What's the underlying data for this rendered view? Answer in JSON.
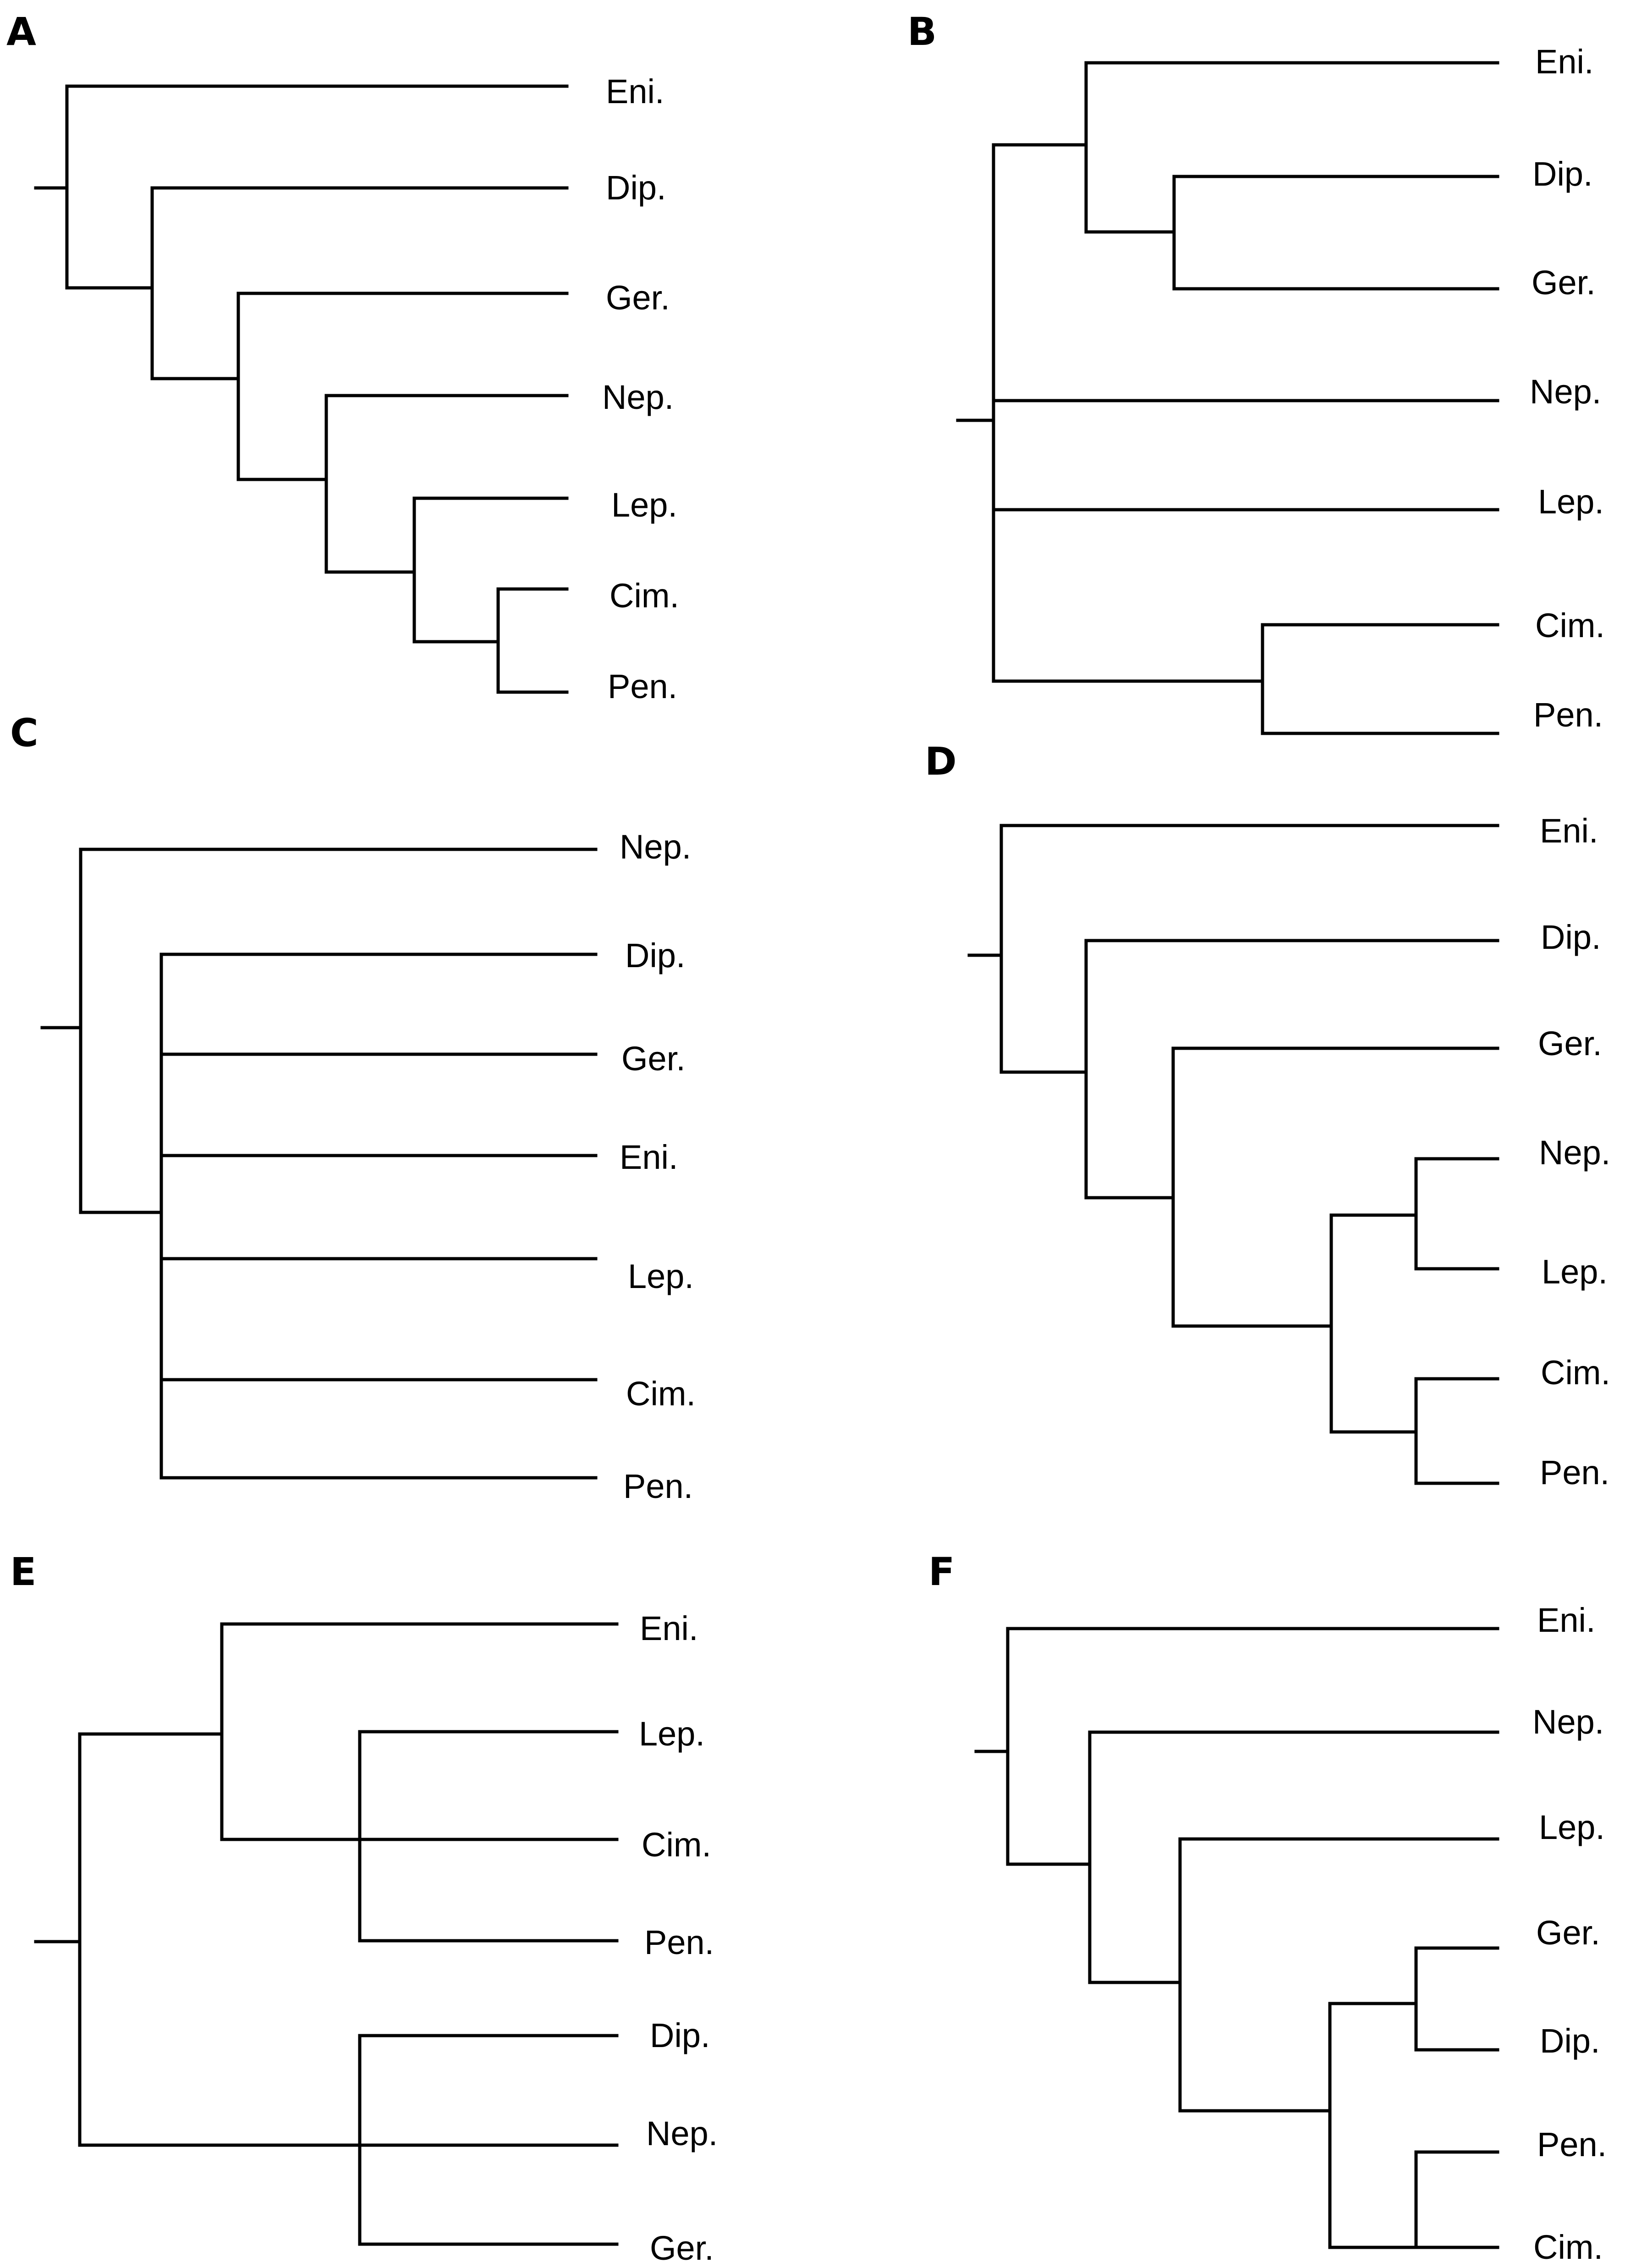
{
  "figure": {
    "panels": [
      {
        "letter": "A",
        "taxa": [
          "Eni.",
          "Dip.",
          "Ger.",
          "Nep.",
          "Lep.",
          "Cim.",
          "Pen."
        ],
        "newick": "(Eni.,(Dip.,(Ger.,(Nep.,(Lep.,(Cim.,Pen.))))))"
      },
      {
        "letter": "B",
        "taxa": [
          "Eni.",
          "Dip.",
          "Ger.",
          "Nep.",
          "Lep.",
          "Cim.",
          "Pen."
        ],
        "newick": "((Eni.,(Dip.,Ger.)),Nep.,Lep.,(Cim.,Pen.))"
      },
      {
        "letter": "C",
        "taxa": [
          "Nep.",
          "Dip.",
          "Ger.",
          "Eni.",
          "Lep.",
          "Cim.",
          "Pen."
        ],
        "newick": "(Nep.,(Dip.,Ger.,Eni.,Lep.,Cim.,Pen.))"
      },
      {
        "letter": "D",
        "taxa": [
          "Eni.",
          "Dip.",
          "Ger.",
          "Nep.",
          "Lep.",
          "Cim.",
          "Pen."
        ],
        "newick": "(Eni.,(Dip.,(Ger.,((Nep.,Lep.),(Cim.,Pen.)))))"
      },
      {
        "letter": "E",
        "taxa": [
          "Eni.",
          "Lep.",
          "Cim.",
          "Pen.",
          "Dip.",
          "Nep.",
          "Ger."
        ],
        "newick": "((Eni.,(Lep.,Cim.,Pen.)),(Dip.,Nep.,Ger.))"
      },
      {
        "letter": "F",
        "taxa": [
          "Eni.",
          "Nep.",
          "Lep.",
          "Ger.",
          "Dip.",
          "Pen.",
          "Cim."
        ],
        "newick": "(Eni.,(Nep.,(Lep.,((Ger.,Dip.),(Pen.,Cim.)))))"
      }
    ]
  }
}
